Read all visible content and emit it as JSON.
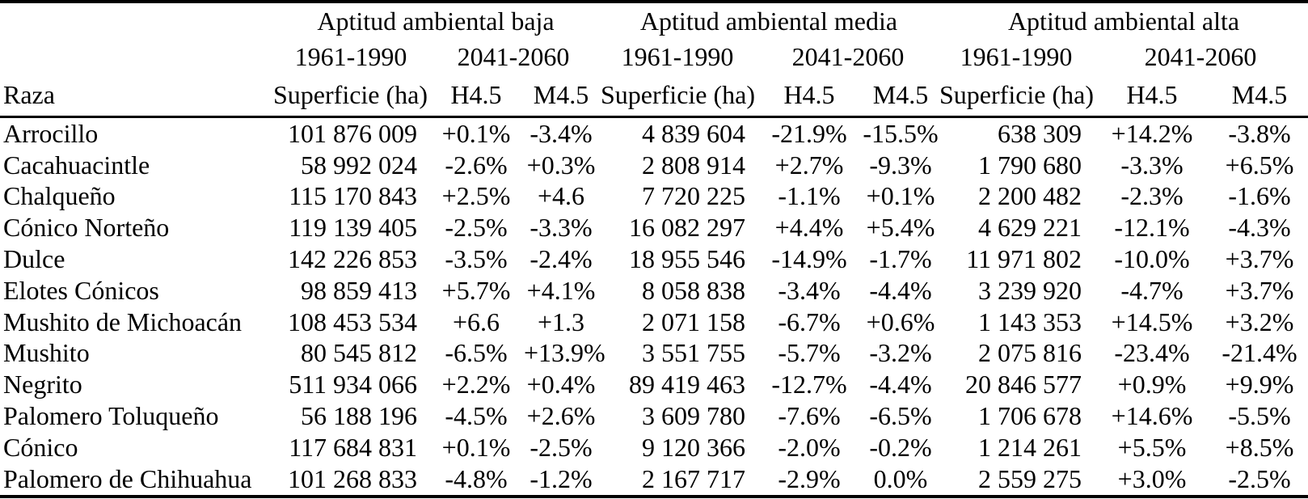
{
  "table": {
    "background_color": "#ffffff",
    "text_color": "#000000",
    "groups": [
      {
        "label": "Aptitud ambiental baja"
      },
      {
        "label": "Aptitud ambiental media"
      },
      {
        "label": "Aptitud ambiental alta"
      }
    ],
    "periods": {
      "historic": "1961-1990",
      "future": "2041-2060"
    },
    "columns": {
      "raza": "Raza",
      "superficie": "Superficie (ha)",
      "h45": "H4.5",
      "m45": "M4.5"
    },
    "rows": [
      {
        "raza": "Arrocillo",
        "baja": {
          "superficie": "101 876 009",
          "h45": "+0.1%",
          "m45": "-3.4%"
        },
        "media": {
          "superficie": "4 839 604",
          "h45": "-21.9%",
          "m45": "-15.5%"
        },
        "alta": {
          "superficie": "638 309",
          "h45": "+14.2%",
          "m45": "-3.8%"
        }
      },
      {
        "raza": "Cacahuacintle",
        "baja": {
          "superficie": "58 992 024",
          "h45": "-2.6%",
          "m45": "+0.3%"
        },
        "media": {
          "superficie": "2 808 914",
          "h45": "+2.7%",
          "m45": "-9.3%"
        },
        "alta": {
          "superficie": "1 790 680",
          "h45": "-3.3%",
          "m45": "+6.5%"
        }
      },
      {
        "raza": "Chalqueño",
        "baja": {
          "superficie": "115 170 843",
          "h45": "+2.5%",
          "m45": "+4.6"
        },
        "media": {
          "superficie": "7 720 225",
          "h45": "-1.1%",
          "m45": "+0.1%"
        },
        "alta": {
          "superficie": "2 200 482",
          "h45": "-2.3%",
          "m45": "-1.6%"
        }
      },
      {
        "raza": "Cónico Norteño",
        "baja": {
          "superficie": "119 139 405",
          "h45": "-2.5%",
          "m45": "-3.3%"
        },
        "media": {
          "superficie": "16 082 297",
          "h45": "+4.4%",
          "m45": "+5.4%"
        },
        "alta": {
          "superficie": "4 629 221",
          "h45": "-12.1%",
          "m45": "-4.3%"
        }
      },
      {
        "raza": "Dulce",
        "baja": {
          "superficie": "142 226 853",
          "h45": "-3.5%",
          "m45": "-2.4%"
        },
        "media": {
          "superficie": "18 955 546",
          "h45": "-14.9%",
          "m45": "-1.7%"
        },
        "alta": {
          "superficie": "11 971 802",
          "h45": "-10.0%",
          "m45": "+3.7%"
        }
      },
      {
        "raza": "Elotes Cónicos",
        "baja": {
          "superficie": "98 859 413",
          "h45": "+5.7%",
          "m45": "+4.1%"
        },
        "media": {
          "superficie": "8 058 838",
          "h45": "-3.4%",
          "m45": "-4.4%"
        },
        "alta": {
          "superficie": "3 239 920",
          "h45": "-4.7%",
          "m45": "+3.7%"
        }
      },
      {
        "raza": "Mushito de Michoacán",
        "baja": {
          "superficie": "108 453 534",
          "h45": "+6.6",
          "m45": "+1.3"
        },
        "media": {
          "superficie": "2 071 158",
          "h45": "-6.7%",
          "m45": "+0.6%"
        },
        "alta": {
          "superficie": "1 143 353",
          "h45": "+14.5%",
          "m45": "+3.2%"
        }
      },
      {
        "raza": "Mushito",
        "baja": {
          "superficie": "80 545 812",
          "h45": "-6.5%",
          "m45": "+13.9%"
        },
        "media": {
          "superficie": "3 551 755",
          "h45": "-5.7%",
          "m45": "-3.2%"
        },
        "alta": {
          "superficie": "2 075 816",
          "h45": "-23.4%",
          "m45": "-21.4%"
        }
      },
      {
        "raza": "Negrito",
        "baja": {
          "superficie": "511 934 066",
          "h45": "+2.2%",
          "m45": "+0.4%"
        },
        "media": {
          "superficie": "89 419 463",
          "h45": "-12.7%",
          "m45": "-4.4%"
        },
        "alta": {
          "superficie": "20 846 577",
          "h45": "+0.9%",
          "m45": "+9.9%"
        }
      },
      {
        "raza": "Palomero Toluqueño",
        "baja": {
          "superficie": "56 188 196",
          "h45": "-4.5%",
          "m45": "+2.6%"
        },
        "media": {
          "superficie": "3 609 780",
          "h45": "-7.6%",
          "m45": "-6.5%"
        },
        "alta": {
          "superficie": "1 706 678",
          "h45": "+14.6%",
          "m45": "-5.5%"
        }
      },
      {
        "raza": "Cónico",
        "baja": {
          "superficie": "117 684 831",
          "h45": "+0.1%",
          "m45": "-2.5%"
        },
        "media": {
          "superficie": "9 120 366",
          "h45": "-2.0%",
          "m45": "-0.2%"
        },
        "alta": {
          "superficie": "1 214 261",
          "h45": "+5.5%",
          "m45": "+8.5%"
        }
      },
      {
        "raza": "Palomero de Chihuahua",
        "baja": {
          "superficie": "101 268 833",
          "h45": "-4.8%",
          "m45": "-1.2%"
        },
        "media": {
          "superficie": "2 167 717",
          "h45": "-2.9%",
          "m45": "0.0%"
        },
        "alta": {
          "superficie": "2 559 275",
          "h45": "+3.0%",
          "m45": "-2.5%"
        }
      }
    ]
  }
}
